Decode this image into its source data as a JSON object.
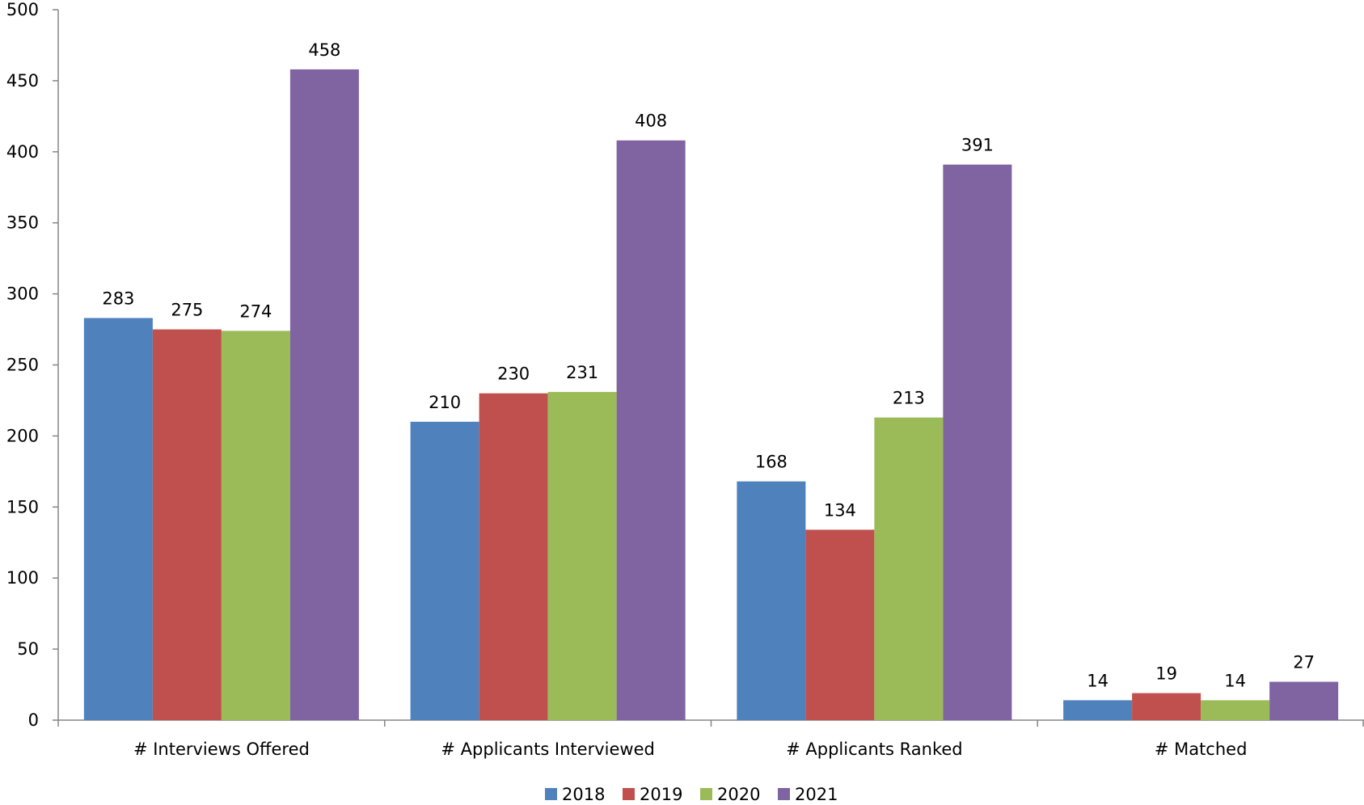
{
  "chart_data": {
    "type": "bar",
    "categories": [
      "# Interviews Offered",
      "# Applicants Interviewed",
      "# Applicants Ranked",
      "# Matched"
    ],
    "series": [
      {
        "name": "2018",
        "color": "#4F81BD",
        "values": [
          283,
          210,
          168,
          14
        ]
      },
      {
        "name": "2019",
        "color": "#C0504D",
        "values": [
          275,
          230,
          134,
          19
        ]
      },
      {
        "name": "2020",
        "color": "#9BBB59",
        "values": [
          274,
          231,
          213,
          14
        ]
      },
      {
        "name": "2021",
        "color": "#8064A2",
        "values": [
          458,
          408,
          391,
          27
        ]
      }
    ],
    "ylim": [
      0,
      500
    ],
    "yticks": [
      0,
      50,
      100,
      150,
      200,
      250,
      300,
      350,
      400,
      450,
      500
    ],
    "grid": false,
    "data_labels": true,
    "legend_position": "bottom-center"
  }
}
